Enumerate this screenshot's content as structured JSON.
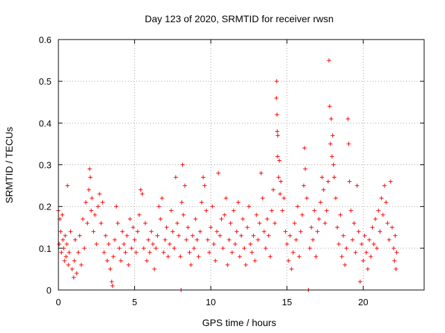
{
  "chart_data": {
    "type": "scatter",
    "title": "Day 123 of 2020, SRMTID for receiver rwsn",
    "xlabel": "GPS time / hours",
    "ylabel": "SRMTID / TECUs",
    "xlim": [
      0,
      24
    ],
    "ylim": [
      0,
      0.6
    ],
    "xticks": [
      0,
      5,
      10,
      15,
      20
    ],
    "yticks": [
      0,
      0.1,
      0.2,
      0.3,
      0.4,
      0.5,
      0.6
    ],
    "xtick_labels": [
      "0",
      "5",
      "10",
      "15",
      "20"
    ],
    "ytick_labels": [
      "0",
      "0.1",
      "0.2",
      "0.3",
      "0.4",
      "0.5",
      "0.6"
    ],
    "grid": true,
    "marker": "+",
    "color": "#ff0000",
    "series": [
      {
        "name": "SRMTID",
        "points": [
          [
            0.0,
            0.19
          ],
          [
            0.05,
            0.11
          ],
          [
            0.1,
            0.17
          ],
          [
            0.15,
            0.14
          ],
          [
            0.2,
            0.09
          ],
          [
            0.25,
            0.18
          ],
          [
            0.3,
            0.12
          ],
          [
            0.35,
            0.1
          ],
          [
            0.4,
            0.07
          ],
          [
            0.45,
            0.13
          ],
          [
            0.5,
            0.08
          ],
          [
            0.55,
            0.11
          ],
          [
            0.6,
            0.25
          ],
          [
            0.65,
            0.06
          ],
          [
            0.7,
            0.09
          ],
          [
            0.8,
            0.14
          ],
          [
            0.9,
            0.05
          ],
          [
            1.0,
            0.03
          ],
          [
            1.05,
            0.07
          ],
          [
            1.1,
            0.12
          ],
          [
            1.2,
            0.04
          ],
          [
            1.3,
            0.09
          ],
          [
            1.4,
            0.13
          ],
          [
            1.5,
            0.06
          ],
          [
            1.6,
            0.17
          ],
          [
            1.7,
            0.1
          ],
          [
            1.8,
            0.21
          ],
          [
            1.9,
            0.16
          ],
          [
            2.0,
            0.24
          ],
          [
            2.05,
            0.29
          ],
          [
            2.1,
            0.27
          ],
          [
            2.15,
            0.19
          ],
          [
            2.2,
            0.22
          ],
          [
            2.3,
            0.14
          ],
          [
            2.4,
            0.18
          ],
          [
            2.5,
            0.11
          ],
          [
            2.6,
            0.2
          ],
          [
            2.7,
            0.23
          ],
          [
            2.8,
            0.16
          ],
          [
            2.9,
            0.21
          ],
          [
            3.0,
            0.09
          ],
          [
            3.1,
            0.13
          ],
          [
            3.2,
            0.07
          ],
          [
            3.3,
            0.11
          ],
          [
            3.4,
            0.05
          ],
          [
            3.5,
            0.02
          ],
          [
            3.55,
            0.01
          ],
          [
            3.6,
            0.08
          ],
          [
            3.7,
            0.12
          ],
          [
            3.8,
            0.2
          ],
          [
            3.9,
            0.16
          ],
          [
            4.0,
            0.1
          ],
          [
            4.1,
            0.07
          ],
          [
            4.2,
            0.14
          ],
          [
            4.3,
            0.11
          ],
          [
            4.4,
            0.09
          ],
          [
            4.5,
            0.13
          ],
          [
            4.6,
            0.06
          ],
          [
            4.7,
            0.17
          ],
          [
            4.8,
            0.1
          ],
          [
            4.9,
            0.15
          ],
          [
            5.0,
            0.12
          ],
          [
            5.1,
            0.09
          ],
          [
            5.2,
            0.14
          ],
          [
            5.3,
            0.18
          ],
          [
            5.4,
            0.24
          ],
          [
            5.5,
            0.23
          ],
          [
            5.6,
            0.1
          ],
          [
            5.7,
            0.16
          ],
          [
            5.8,
            0.07
          ],
          [
            5.9,
            0.12
          ],
          [
            6.0,
            0.09
          ],
          [
            6.1,
            0.14
          ],
          [
            6.2,
            0.11
          ],
          [
            6.3,
            0.05
          ],
          [
            6.4,
            0.1
          ],
          [
            6.5,
            0.13
          ],
          [
            6.6,
            0.2
          ],
          [
            6.7,
            0.17
          ],
          [
            6.8,
            0.22
          ],
          [
            6.9,
            0.09
          ],
          [
            7.0,
            0.12
          ],
          [
            7.1,
            0.15
          ],
          [
            7.2,
            0.08
          ],
          [
            7.3,
            0.11
          ],
          [
            7.4,
            0.19
          ],
          [
            7.5,
            0.14
          ],
          [
            7.6,
            0.1
          ],
          [
            7.7,
            0.27
          ],
          [
            7.8,
            0.16
          ],
          [
            7.9,
            0.13
          ],
          [
            8.0,
            0.08
          ],
          [
            8.05,
            0.0
          ],
          [
            8.1,
            0.21
          ],
          [
            8.15,
            0.3
          ],
          [
            8.2,
            0.18
          ],
          [
            8.3,
            0.25
          ],
          [
            8.4,
            0.12
          ],
          [
            8.5,
            0.15
          ],
          [
            8.6,
            0.09
          ],
          [
            8.7,
            0.06
          ],
          [
            8.8,
            0.13
          ],
          [
            8.9,
            0.1
          ],
          [
            9.0,
            0.17
          ],
          [
            9.1,
            0.12
          ],
          [
            9.2,
            0.08
          ],
          [
            9.3,
            0.14
          ],
          [
            9.4,
            0.21
          ],
          [
            9.5,
            0.27
          ],
          [
            9.6,
            0.25
          ],
          [
            9.7,
            0.19
          ],
          [
            9.8,
            0.12
          ],
          [
            9.9,
            0.09
          ],
          [
            10.0,
            0.15
          ],
          [
            10.1,
            0.2
          ],
          [
            10.2,
            0.11
          ],
          [
            10.3,
            0.07
          ],
          [
            10.4,
            0.14
          ],
          [
            10.5,
            0.28
          ],
          [
            10.6,
            0.13
          ],
          [
            10.7,
            0.17
          ],
          [
            10.8,
            0.1
          ],
          [
            10.9,
            0.18
          ],
          [
            11.0,
            0.22
          ],
          [
            11.1,
            0.06
          ],
          [
            11.2,
            0.12
          ],
          [
            11.3,
            0.16
          ],
          [
            11.4,
            0.09
          ],
          [
            11.5,
            0.19
          ],
          [
            11.6,
            0.11
          ],
          [
            11.7,
            0.14
          ],
          [
            11.8,
            0.21
          ],
          [
            11.9,
            0.08
          ],
          [
            12.0,
            0.13
          ],
          [
            12.1,
            0.17
          ],
          [
            12.2,
            0.1
          ],
          [
            12.3,
            0.06
          ],
          [
            12.4,
            0.15
          ],
          [
            12.5,
            0.2
          ],
          [
            12.6,
            0.11
          ],
          [
            12.7,
            0.09
          ],
          [
            12.8,
            0.13
          ],
          [
            12.9,
            0.07
          ],
          [
            13.0,
            0.18
          ],
          [
            13.1,
            0.12
          ],
          [
            13.2,
            0.16
          ],
          [
            13.3,
            0.28
          ],
          [
            13.4,
            0.22
          ],
          [
            13.5,
            0.14
          ],
          [
            13.6,
            0.1
          ],
          [
            13.7,
            0.17
          ],
          [
            13.8,
            0.13
          ],
          [
            13.9,
            0.08
          ],
          [
            14.0,
            0.19
          ],
          [
            14.1,
            0.24
          ],
          [
            14.2,
            0.16
          ],
          [
            14.3,
            0.46
          ],
          [
            14.32,
            0.5
          ],
          [
            14.34,
            0.42
          ],
          [
            14.36,
            0.38
          ],
          [
            14.38,
            0.32
          ],
          [
            14.4,
            0.37
          ],
          [
            14.45,
            0.27
          ],
          [
            14.5,
            0.31
          ],
          [
            14.55,
            0.23
          ],
          [
            14.6,
            0.26
          ],
          [
            14.7,
            0.19
          ],
          [
            14.8,
            0.22
          ],
          [
            14.9,
            0.14
          ],
          [
            15.0,
            0.11
          ],
          [
            15.1,
            0.07
          ],
          [
            15.2,
            0.13
          ],
          [
            15.3,
            0.05
          ],
          [
            15.4,
            0.09
          ],
          [
            15.5,
            0.16
          ],
          [
            15.6,
            0.12
          ],
          [
            15.7,
            0.2
          ],
          [
            15.8,
            0.08
          ],
          [
            15.9,
            0.14
          ],
          [
            16.0,
            0.18
          ],
          [
            16.1,
            0.25
          ],
          [
            16.15,
            0.34
          ],
          [
            16.2,
            0.29
          ],
          [
            16.3,
            0.22
          ],
          [
            16.4,
            0.0
          ],
          [
            16.5,
            0.1
          ],
          [
            16.6,
            0.15
          ],
          [
            16.7,
            0.12
          ],
          [
            16.8,
            0.19
          ],
          [
            16.9,
            0.08
          ],
          [
            17.0,
            0.14
          ],
          [
            17.1,
            0.17
          ],
          [
            17.2,
            0.21
          ],
          [
            17.3,
            0.27
          ],
          [
            17.4,
            0.24
          ],
          [
            17.5,
            0.16
          ],
          [
            17.6,
            0.19
          ],
          [
            17.7,
            0.26
          ],
          [
            17.75,
            0.55
          ],
          [
            17.8,
            0.44
          ],
          [
            17.85,
            0.35
          ],
          [
            17.9,
            0.41
          ],
          [
            17.95,
            0.32
          ],
          [
            18.0,
            0.37
          ],
          [
            18.05,
            0.3
          ],
          [
            18.1,
            0.27
          ],
          [
            18.2,
            0.22
          ],
          [
            18.3,
            0.15
          ],
          [
            18.4,
            0.11
          ],
          [
            18.5,
            0.18
          ],
          [
            18.6,
            0.08
          ],
          [
            18.7,
            0.13
          ],
          [
            18.8,
            0.06
          ],
          [
            18.9,
            0.1
          ],
          [
            19.0,
            0.41
          ],
          [
            19.05,
            0.35
          ],
          [
            19.1,
            0.26
          ],
          [
            19.2,
            0.19
          ],
          [
            19.3,
            0.12
          ],
          [
            19.4,
            0.16
          ],
          [
            19.5,
            0.09
          ],
          [
            19.6,
            0.25
          ],
          [
            19.7,
            0.14
          ],
          [
            19.8,
            0.02
          ],
          [
            19.9,
            0.11
          ],
          [
            20.0,
            0.07
          ],
          [
            20.1,
            0.13
          ],
          [
            20.2,
            0.09
          ],
          [
            20.3,
            0.05
          ],
          [
            20.4,
            0.12
          ],
          [
            20.5,
            0.08
          ],
          [
            20.6,
            0.15
          ],
          [
            20.7,
            0.11
          ],
          [
            20.8,
            0.17
          ],
          [
            20.9,
            0.1
          ],
          [
            21.0,
            0.19
          ],
          [
            21.1,
            0.14
          ],
          [
            21.2,
            0.22
          ],
          [
            21.3,
            0.18
          ],
          [
            21.4,
            0.25
          ],
          [
            21.5,
            0.21
          ],
          [
            21.6,
            0.16
          ],
          [
            21.7,
            0.12
          ],
          [
            21.8,
            0.26
          ],
          [
            21.9,
            0.15
          ],
          [
            22.0,
            0.1
          ],
          [
            22.05,
            0.07
          ],
          [
            22.1,
            0.13
          ],
          [
            22.15,
            0.05
          ],
          [
            22.2,
            0.09
          ]
        ]
      }
    ]
  }
}
